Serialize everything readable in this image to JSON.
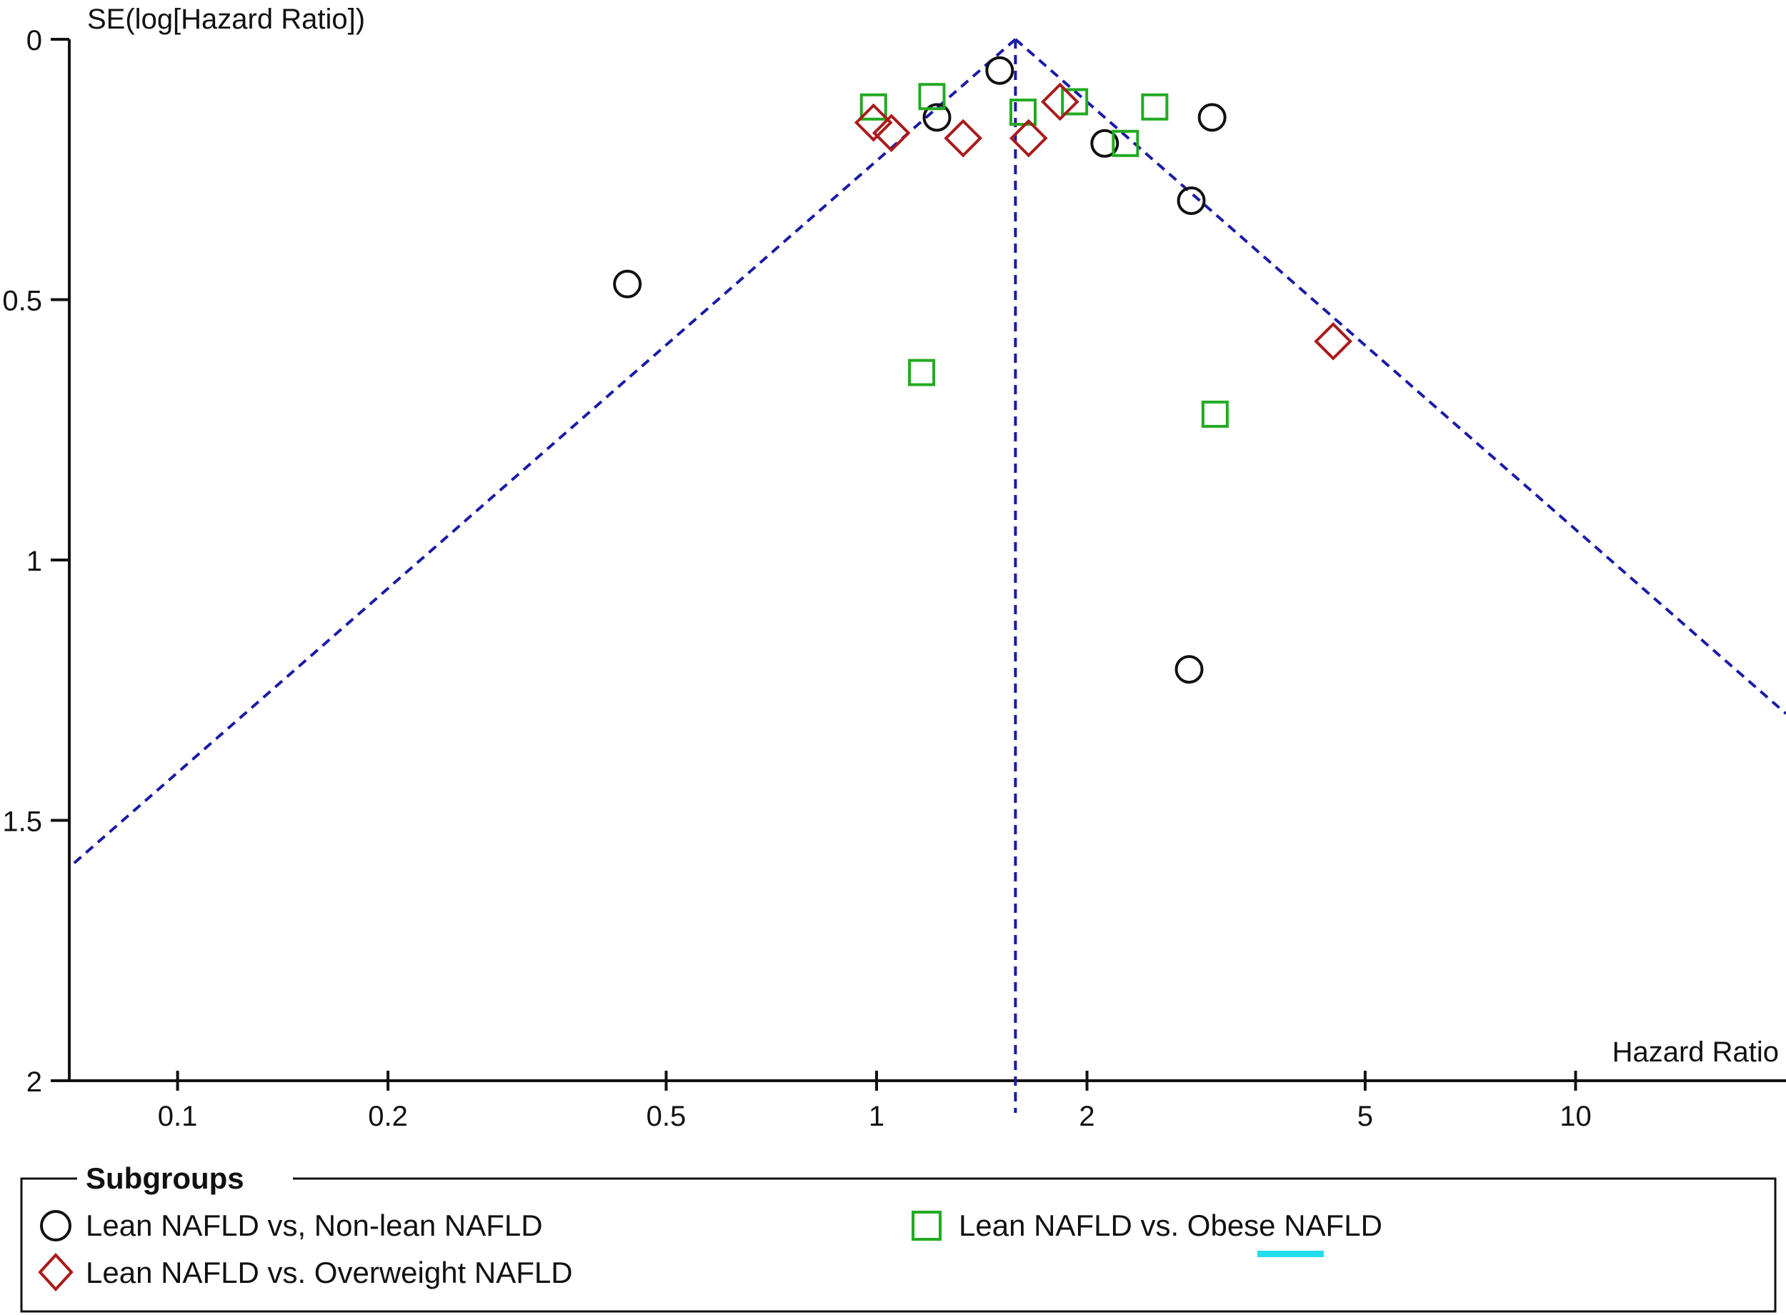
{
  "chart_data": {
    "type": "scatter",
    "subtype": "funnel-plot",
    "x_scale": "log",
    "xlim": [
      0.07,
      20
    ],
    "ylim": [
      0,
      2
    ],
    "y_inverted": true,
    "ylabel": "SE(log[Hazard Ratio])",
    "xlabel": "Hazard Ratio",
    "x_ticks": [
      {
        "value": 0.1,
        "label": "0.1"
      },
      {
        "value": 0.2,
        "label": "0.2"
      },
      {
        "value": 0.5,
        "label": "0.5"
      },
      {
        "value": 1,
        "label": "1"
      },
      {
        "value": 2,
        "label": "2"
      },
      {
        "value": 5,
        "label": "5"
      },
      {
        "value": 10,
        "label": "10"
      }
    ],
    "y_ticks": [
      {
        "value": 0,
        "label": "0"
      },
      {
        "value": 0.5,
        "label": "0.5"
      },
      {
        "value": 1,
        "label": "1"
      },
      {
        "value": 1.5,
        "label": "1.5"
      },
      {
        "value": 2,
        "label": "2"
      }
    ],
    "pooled_estimate": 1.58,
    "funnel_line_color": "#1a1aa8",
    "legend": {
      "title": "Subgroups",
      "placement": "bottom"
    },
    "series": [
      {
        "name": "Lean NAFLD vs, Non-lean NAFLD",
        "marker": "circle",
        "color": "#111111",
        "points": [
          {
            "x": 0.44,
            "y": 0.47
          },
          {
            "x": 1.22,
            "y": 0.15
          },
          {
            "x": 1.5,
            "y": 0.06
          },
          {
            "x": 2.12,
            "y": 0.2
          },
          {
            "x": 2.82,
            "y": 0.31
          },
          {
            "x": 3.02,
            "y": 0.15
          },
          {
            "x": 2.8,
            "y": 1.21
          }
        ]
      },
      {
        "name": "Lean NAFLD vs. Obese NAFLD",
        "marker": "square",
        "color": "#22aa22",
        "points": [
          {
            "x": 0.99,
            "y": 0.13
          },
          {
            "x": 1.2,
            "y": 0.11
          },
          {
            "x": 1.16,
            "y": 0.64
          },
          {
            "x": 1.62,
            "y": 0.14
          },
          {
            "x": 1.92,
            "y": 0.12
          },
          {
            "x": 2.27,
            "y": 0.2
          },
          {
            "x": 2.5,
            "y": 0.13
          },
          {
            "x": 3.05,
            "y": 0.72
          }
        ]
      },
      {
        "name": "Lean NAFLD vs. Overweight NAFLD",
        "marker": "diamond",
        "color": "#aa1a1a",
        "points": [
          {
            "x": 0.99,
            "y": 0.16
          },
          {
            "x": 1.05,
            "y": 0.18
          },
          {
            "x": 1.33,
            "y": 0.19
          },
          {
            "x": 1.65,
            "y": 0.19
          },
          {
            "x": 1.83,
            "y": 0.12
          },
          {
            "x": 4.5,
            "y": 0.58
          }
        ]
      }
    ],
    "annotation": {
      "type": "underline-mark",
      "under": "Obese",
      "color": "#22ddee"
    }
  }
}
